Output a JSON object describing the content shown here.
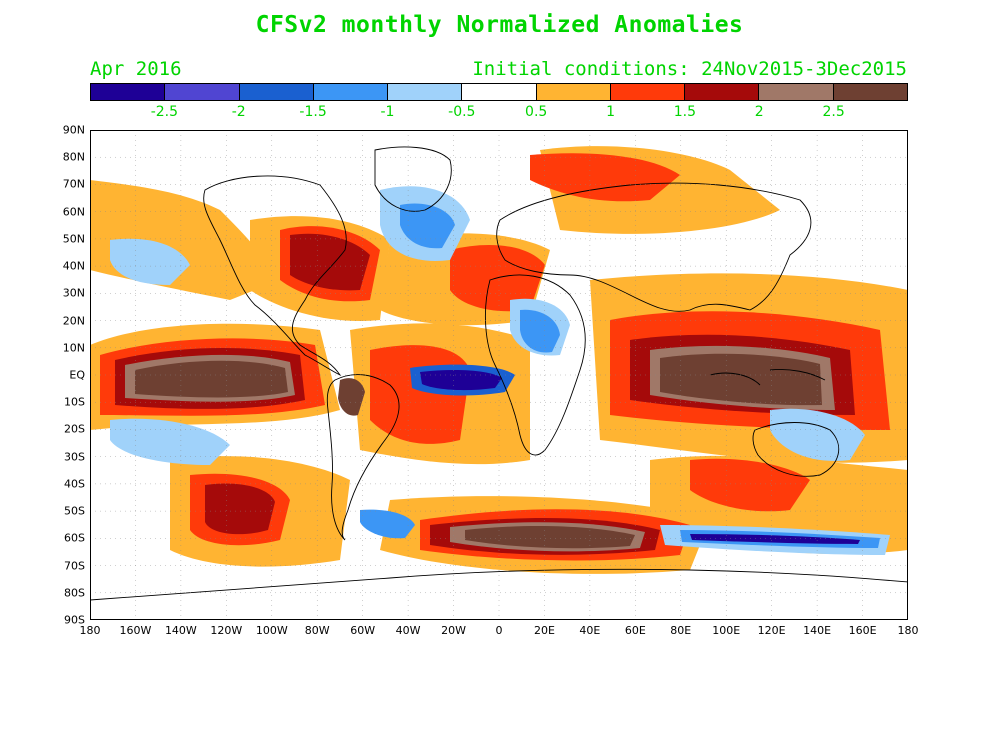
{
  "title": "CFSv2 monthly Normalized Anomalies",
  "valid_month": "Apr 2016",
  "initial_conditions": "Initial conditions: 24Nov2015-3Dec2015",
  "colorbar": {
    "colors": [
      "#1e0096",
      "#5045d2",
      "#1a60d0",
      "#3c96f5",
      "#a0d2fa",
      "#ffffff",
      "#ffb432",
      "#ff3a0a",
      "#a50a0a",
      "#a07868",
      "#6e4032"
    ],
    "labels": [
      "-2.5",
      "-2",
      "-1.5",
      "-1",
      "-0.5",
      "0.5",
      "1",
      "1.5",
      "2",
      "2.5"
    ]
  },
  "lat_labels": [
    "90N",
    "80N",
    "70N",
    "60N",
    "50N",
    "40N",
    "30N",
    "20N",
    "10N",
    "EQ",
    "10S",
    "20S",
    "30S",
    "40S",
    "50S",
    "60S",
    "70S",
    "80S",
    "90S"
  ],
  "lon_labels": [
    "180",
    "160W",
    "140W",
    "120W",
    "100W",
    "80W",
    "60W",
    "40W",
    "20W",
    "0",
    "20E",
    "40E",
    "60E",
    "80E",
    "100E",
    "120E",
    "140E",
    "160E",
    "180"
  ]
}
